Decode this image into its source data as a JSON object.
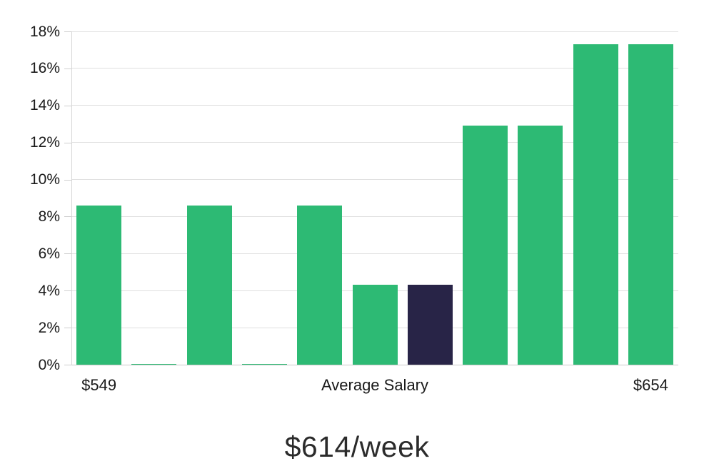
{
  "chart_data": {
    "type": "bar",
    "title": "$614/week",
    "xlabel": "",
    "ylabel": "",
    "ylim": [
      0,
      18
    ],
    "grid": true,
    "legend": false,
    "y_ticks": [
      {
        "value": 0,
        "label": "0%"
      },
      {
        "value": 2,
        "label": "2%"
      },
      {
        "value": 4,
        "label": "4%"
      },
      {
        "value": 6,
        "label": "6%"
      },
      {
        "value": 8,
        "label": "8%"
      },
      {
        "value": 10,
        "label": "10%"
      },
      {
        "value": 12,
        "label": "12%"
      },
      {
        "value": 14,
        "label": "14%"
      },
      {
        "value": 16,
        "label": "16%"
      },
      {
        "value": 18,
        "label": "18%"
      }
    ],
    "bars": [
      8.6,
      0.05,
      8.6,
      0.05,
      8.6,
      4.3,
      4.3,
      12.9,
      12.9,
      17.3,
      17.3
    ],
    "highlighted_index": 6,
    "x_labels": [
      {
        "text": "$549",
        "anchor": "bar-0"
      },
      {
        "text": "Average Salary",
        "anchor": "center"
      },
      {
        "text": "$654",
        "anchor": "bar-10"
      }
    ],
    "colors": {
      "bar": "#2dba74",
      "highlight": "#282447",
      "gridline": "#e0e0e0",
      "baseline": "#c9c9c9",
      "axis_line": "#d6d6d6",
      "tick": "#cfcfcf",
      "label_text": "#1a1a1a",
      "title_text": "#2b2b2b",
      "background": "#ffffff"
    }
  }
}
